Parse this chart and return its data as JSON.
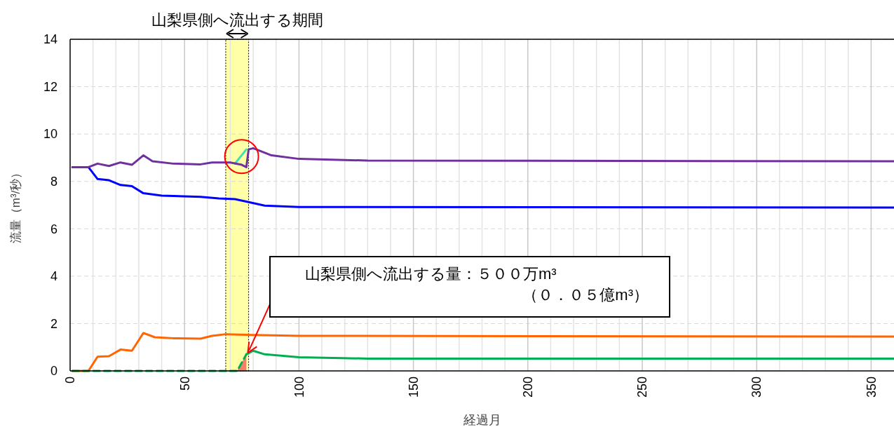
{
  "chart_data": {
    "type": "line",
    "xlabel": "経過月",
    "ylabel": "流量（m³/秒）",
    "xlim": [
      0,
      360
    ],
    "ylim": [
      0,
      14
    ],
    "xticks": [
      0,
      {
        "value": 10,
        "label": null
      },
      {
        "value": 20,
        "label": null
      },
      {
        "value": 30,
        "label": null
      },
      {
        "value": 40,
        "label": null
      },
      50,
      {
        "value": 60,
        "label": null
      },
      {
        "value": 70,
        "label": null
      },
      {
        "value": 80,
        "label": null
      },
      {
        "value": 90,
        "label": null
      },
      100,
      {
        "value": 110,
        "label": null
      },
      {
        "value": 120,
        "label": null
      },
      {
        "value": 130,
        "label": null
      },
      {
        "value": 140,
        "label": null
      },
      150,
      {
        "value": 160,
        "label": null
      },
      {
        "value": 170,
        "label": null
      },
      {
        "value": 180,
        "label": null
      },
      {
        "value": 190,
        "label": null
      },
      200,
      {
        "value": 210,
        "label": null
      },
      {
        "value": 220,
        "label": null
      },
      {
        "value": 230,
        "label": null
      },
      {
        "value": 240,
        "label": null
      },
      250,
      {
        "value": 260,
        "label": null
      },
      {
        "value": 270,
        "label": null
      },
      {
        "value": 280,
        "label": null
      },
      {
        "value": 290,
        "label": null
      },
      300,
      {
        "value": 310,
        "label": null
      },
      {
        "value": 320,
        "label": null
      },
      {
        "value": 330,
        "label": null
      },
      {
        "value": 340,
        "label": null
      },
      350
    ],
    "yticks": [
      0,
      2,
      4,
      6,
      8,
      10,
      12,
      14
    ],
    "grid": true,
    "bands": [
      {
        "axis": "x",
        "from": 68,
        "to": 78,
        "label": "山梨県側へ流出する期間",
        "color": "#ffff99"
      }
    ],
    "series": [
      {
        "type": "area",
        "color": "#f4806a",
        "x": [
          73,
          77
        ],
        "values": [
          0,
          0.7
        ]
      },
      {
        "color": "#ff6600",
        "x": [
          1,
          8,
          12,
          17,
          22,
          27,
          32,
          37,
          45,
          57,
          62,
          68,
          80,
          100,
          360
        ],
        "values": [
          0,
          0,
          0.6,
          0.62,
          0.9,
          0.85,
          1.6,
          1.42,
          1.38,
          1.36,
          1.48,
          1.55,
          1.52,
          1.48,
          1.45
        ]
      },
      {
        "color": "#00b050",
        "line_style": "dashed",
        "x": [
          1,
          73,
          77
        ],
        "values": [
          0,
          0,
          0.7
        ]
      },
      {
        "color": "#00b050",
        "x": [
          77,
          80,
          85,
          100,
          130,
          360
        ],
        "values": [
          0.7,
          0.85,
          0.7,
          0.58,
          0.52,
          0.52
        ]
      },
      {
        "color": "#0000ff",
        "x": [
          1,
          8,
          12,
          17,
          22,
          27,
          32,
          40,
          57,
          65,
          72,
          77,
          85,
          100,
          360
        ],
        "values": [
          8.6,
          8.6,
          8.1,
          8.05,
          7.85,
          7.8,
          7.5,
          7.4,
          7.35,
          7.28,
          7.25,
          7.15,
          6.98,
          6.92,
          6.9
        ]
      },
      {
        "color": "#40e0b0",
        "x": [
          72,
          77
        ],
        "values": [
          8.75,
          9.35
        ]
      },
      {
        "color": "#7030a0",
        "x": [
          1,
          8,
          12,
          17,
          22,
          27,
          32,
          36,
          45,
          57,
          62,
          70,
          75,
          77,
          78,
          80,
          88,
          100,
          130,
          360
        ],
        "values": [
          8.6,
          8.6,
          8.75,
          8.65,
          8.8,
          8.7,
          9.1,
          8.85,
          8.75,
          8.72,
          8.8,
          8.8,
          8.7,
          8.6,
          9.35,
          9.4,
          9.1,
          8.95,
          8.88,
          8.85
        ]
      }
    ],
    "annotations": [
      "山梨県側へ流出する量：５００万m³\n（０．０５億m³）"
    ]
  }
}
